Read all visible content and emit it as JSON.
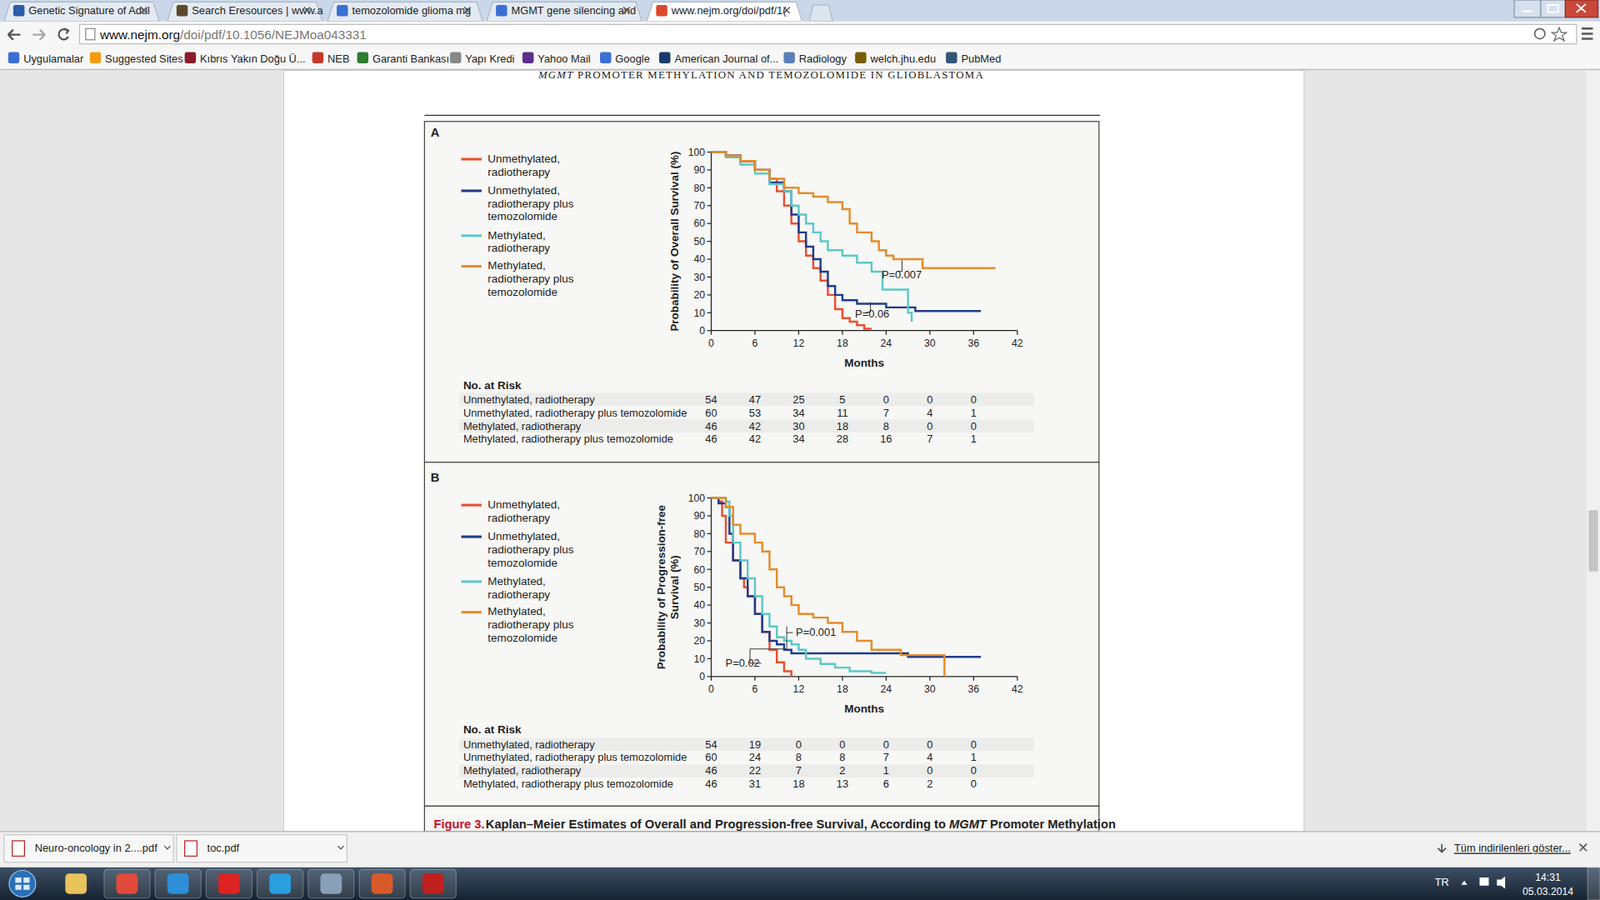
{
  "browser": {
    "tabs": [
      "Genetic Signature of Adul",
      "Search Eresources | www.a",
      "temozolomide glioma mg",
      "MGMT gene silencing and",
      "www.nejm.org/doi/pdf/1("
    ],
    "url": "www.nejm.org/doi/pdf/10.1056/NEJMoa043331",
    "bookmarks": [
      "Uygulamalar",
      "Suggested Sites",
      "Kıbrıs Yakın Doğu Ü...",
      "NEB",
      "Garanti Bankası",
      "Yapı Kredi",
      "Yahoo Mail",
      "Google",
      "American Journal of...",
      "Radiology",
      "welch.jhu.edu",
      "PubMed"
    ]
  },
  "page": {
    "running_head": "MGMT PROMOTER METHYLATION AND TEMOZOLOMIDE IN GLIOBLASTOMA",
    "caption_label": "Figure 3.",
    "caption": "Kaplan–Meier Estimates of Overall and Progression-free Survival, According to MGMT Promoter Methylation"
  },
  "chart_data": [
    {
      "type": "line",
      "line_style": "step",
      "panel": "A",
      "xlabel": "Months",
      "ylabel": "Probability of Overall Survival (%)",
      "xlim": [
        0,
        42
      ],
      "xticks": [
        0,
        6,
        12,
        18,
        24,
        30,
        36,
        42
      ],
      "ylim": [
        0,
        100
      ],
      "yticks": [
        0,
        10,
        20,
        30,
        40,
        50,
        60,
        70,
        80,
        90,
        100
      ],
      "grid": false,
      "legend": "left",
      "series": [
        {
          "name": "Unmethylated, radiotherapy",
          "color": "#e8502f",
          "x": [
            0,
            2,
            4,
            6,
            8,
            9,
            10,
            11,
            12,
            13,
            14,
            15,
            16,
            17,
            18,
            19,
            20,
            21,
            22
          ],
          "values": [
            100,
            98,
            95,
            90,
            85,
            78,
            70,
            60,
            50,
            42,
            35,
            28,
            20,
            12,
            7,
            5,
            3,
            1,
            1
          ]
        },
        {
          "name": "Unmethylated, radiotherapy plus temozolomide",
          "color": "#1f3c8f",
          "x": [
            0,
            2,
            4,
            6,
            8,
            10,
            11,
            12,
            13,
            14,
            15,
            16,
            17,
            18,
            20,
            24,
            28,
            37
          ],
          "values": [
            100,
            98,
            95,
            90,
            83,
            78,
            65,
            55,
            47,
            40,
            33,
            25,
            20,
            17,
            15,
            13,
            11,
            11
          ]
        },
        {
          "name": "Methylated, radiotherapy",
          "color": "#5bc8c8",
          "x": [
            0,
            2,
            4,
            6,
            8,
            10,
            11,
            12,
            13,
            14,
            15,
            16,
            18,
            20,
            22,
            23.5,
            27,
            27.5
          ],
          "values": [
            100,
            97,
            93,
            88,
            82,
            78,
            70,
            65,
            60,
            55,
            50,
            45,
            42,
            38,
            33,
            23,
            10,
            5
          ]
        },
        {
          "name": "Methylated, radiotherapy plus temozolomide",
          "color": "#e38d2b",
          "x": [
            0,
            2,
            4,
            6,
            8,
            10,
            12,
            14,
            16,
            18,
            19,
            20,
            22,
            23,
            24,
            25,
            29,
            39
          ],
          "values": [
            100,
            98,
            95,
            90,
            85,
            80,
            77,
            75,
            72,
            68,
            60,
            55,
            50,
            45,
            42,
            40,
            35,
            35
          ]
        }
      ],
      "annotations": [
        "P=0.007",
        "P=0.06"
      ],
      "risk_table": {
        "title": "No. at Risk",
        "rows": [
          {
            "label": "Unmethylated, radiotherapy",
            "values": [
              54,
              47,
              25,
              5,
              0,
              0,
              0
            ]
          },
          {
            "label": "Unmethylated, radiotherapy plus temozolomide",
            "values": [
              60,
              53,
              34,
              11,
              7,
              4,
              1
            ]
          },
          {
            "label": "Methylated, radiotherapy",
            "values": [
              46,
              42,
              30,
              18,
              8,
              0,
              0
            ]
          },
          {
            "label": "Methylated, radiotherapy plus temozolomide",
            "values": [
              46,
              42,
              34,
              28,
              16,
              7,
              1
            ]
          }
        ]
      }
    },
    {
      "type": "line",
      "line_style": "step",
      "panel": "B",
      "xlabel": "Months",
      "ylabel": "Probability of Progression-free Survival (%)",
      "xlim": [
        0,
        42
      ],
      "xticks": [
        0,
        6,
        12,
        18,
        24,
        30,
        36,
        42
      ],
      "ylim": [
        0,
        100
      ],
      "yticks": [
        0,
        10,
        20,
        30,
        40,
        50,
        60,
        70,
        80,
        90,
        100
      ],
      "grid": false,
      "legend": "left",
      "series": [
        {
          "name": "Unmethylated, radiotherapy",
          "color": "#e8502f",
          "x": [
            0,
            1,
            1.5,
            2,
            3,
            4,
            4.5,
            5,
            6,
            7,
            8,
            9,
            10,
            11
          ],
          "values": [
            100,
            98,
            90,
            75,
            65,
            55,
            50,
            45,
            35,
            25,
            15,
            8,
            3,
            0
          ]
        },
        {
          "name": "Unmethylated, radiotherapy plus temozolomide",
          "color": "#1f3c8f",
          "x": [
            0,
            1,
            2,
            2.5,
            3,
            4,
            5,
            6,
            7,
            8,
            9,
            10,
            11,
            24,
            27,
            37
          ],
          "values": [
            100,
            97,
            95,
            80,
            65,
            55,
            45,
            35,
            25,
            20,
            18,
            15,
            13,
            13,
            11,
            11
          ]
        },
        {
          "name": "Methylated, radiotherapy",
          "color": "#5bc8c8",
          "x": [
            0,
            2,
            2.5,
            3,
            4,
            5,
            6,
            7,
            8,
            9,
            10,
            11,
            12,
            13,
            15,
            17,
            19,
            22,
            24
          ],
          "values": [
            100,
            98,
            90,
            75,
            65,
            55,
            45,
            35,
            28,
            22,
            20,
            18,
            15,
            10,
            7,
            5,
            3,
            2,
            2
          ]
        },
        {
          "name": "Methylated, radiotherapy plus temozolomide",
          "color": "#e38d2b",
          "x": [
            0,
            2,
            3,
            4,
            6,
            7,
            8,
            9,
            10,
            11,
            12,
            14,
            16,
            18,
            20,
            22,
            26,
            32,
            32
          ],
          "values": [
            100,
            95,
            85,
            80,
            75,
            70,
            60,
            50,
            45,
            40,
            35,
            33,
            30,
            25,
            20,
            15,
            12,
            12,
            0
          ]
        }
      ],
      "annotations": [
        "P=0.001",
        "P=0.02"
      ],
      "risk_table": {
        "title": "No. at Risk",
        "rows": [
          {
            "label": "Unmethylated, radiotherapy",
            "values": [
              54,
              19,
              0,
              0,
              0,
              0,
              0
            ]
          },
          {
            "label": "Unmethylated, radiotherapy plus temozolomide",
            "values": [
              60,
              24,
              8,
              8,
              7,
              4,
              1
            ]
          },
          {
            "label": "Methylated, radiotherapy",
            "values": [
              46,
              22,
              7,
              2,
              1,
              0,
              0
            ]
          },
          {
            "label": "Methylated, radiotherapy plus temozolomide",
            "values": [
              46,
              31,
              18,
              13,
              6,
              2,
              0
            ]
          }
        ]
      }
    }
  ],
  "downloads": {
    "items": [
      "Neuro-oncology in 2....pdf",
      "toc.pdf"
    ],
    "show_all": "Tüm indirilenleri göster..."
  },
  "taskbar": {
    "language": "TR",
    "time": "14:31",
    "date": "05.03.2014"
  }
}
